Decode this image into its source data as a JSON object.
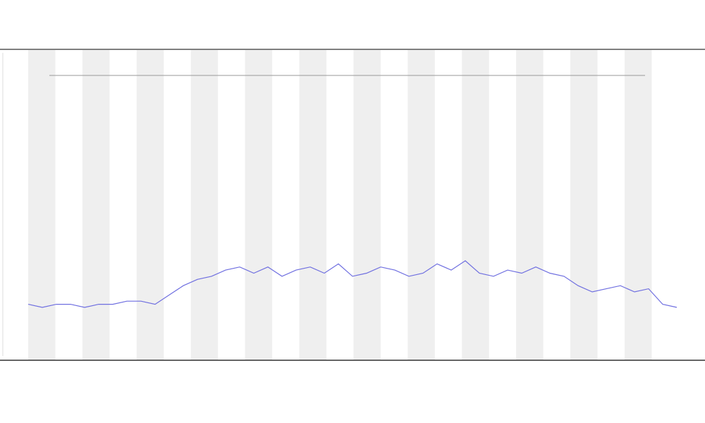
{
  "chart_data": {
    "type": "line",
    "color": "#6f6fe0",
    "values": [
      18,
      17,
      18,
      18,
      17,
      18,
      18,
      19,
      19,
      18,
      21,
      24,
      26,
      27,
      29,
      30,
      28,
      30,
      27,
      29,
      30,
      28,
      31,
      27,
      28,
      30,
      29,
      27,
      28,
      31,
      29,
      32,
      28,
      27,
      29,
      28,
      30,
      28,
      27,
      24,
      22,
      23,
      24,
      22,
      23,
      18,
      17
    ],
    "ylim": [
      0,
      100
    ]
  }
}
